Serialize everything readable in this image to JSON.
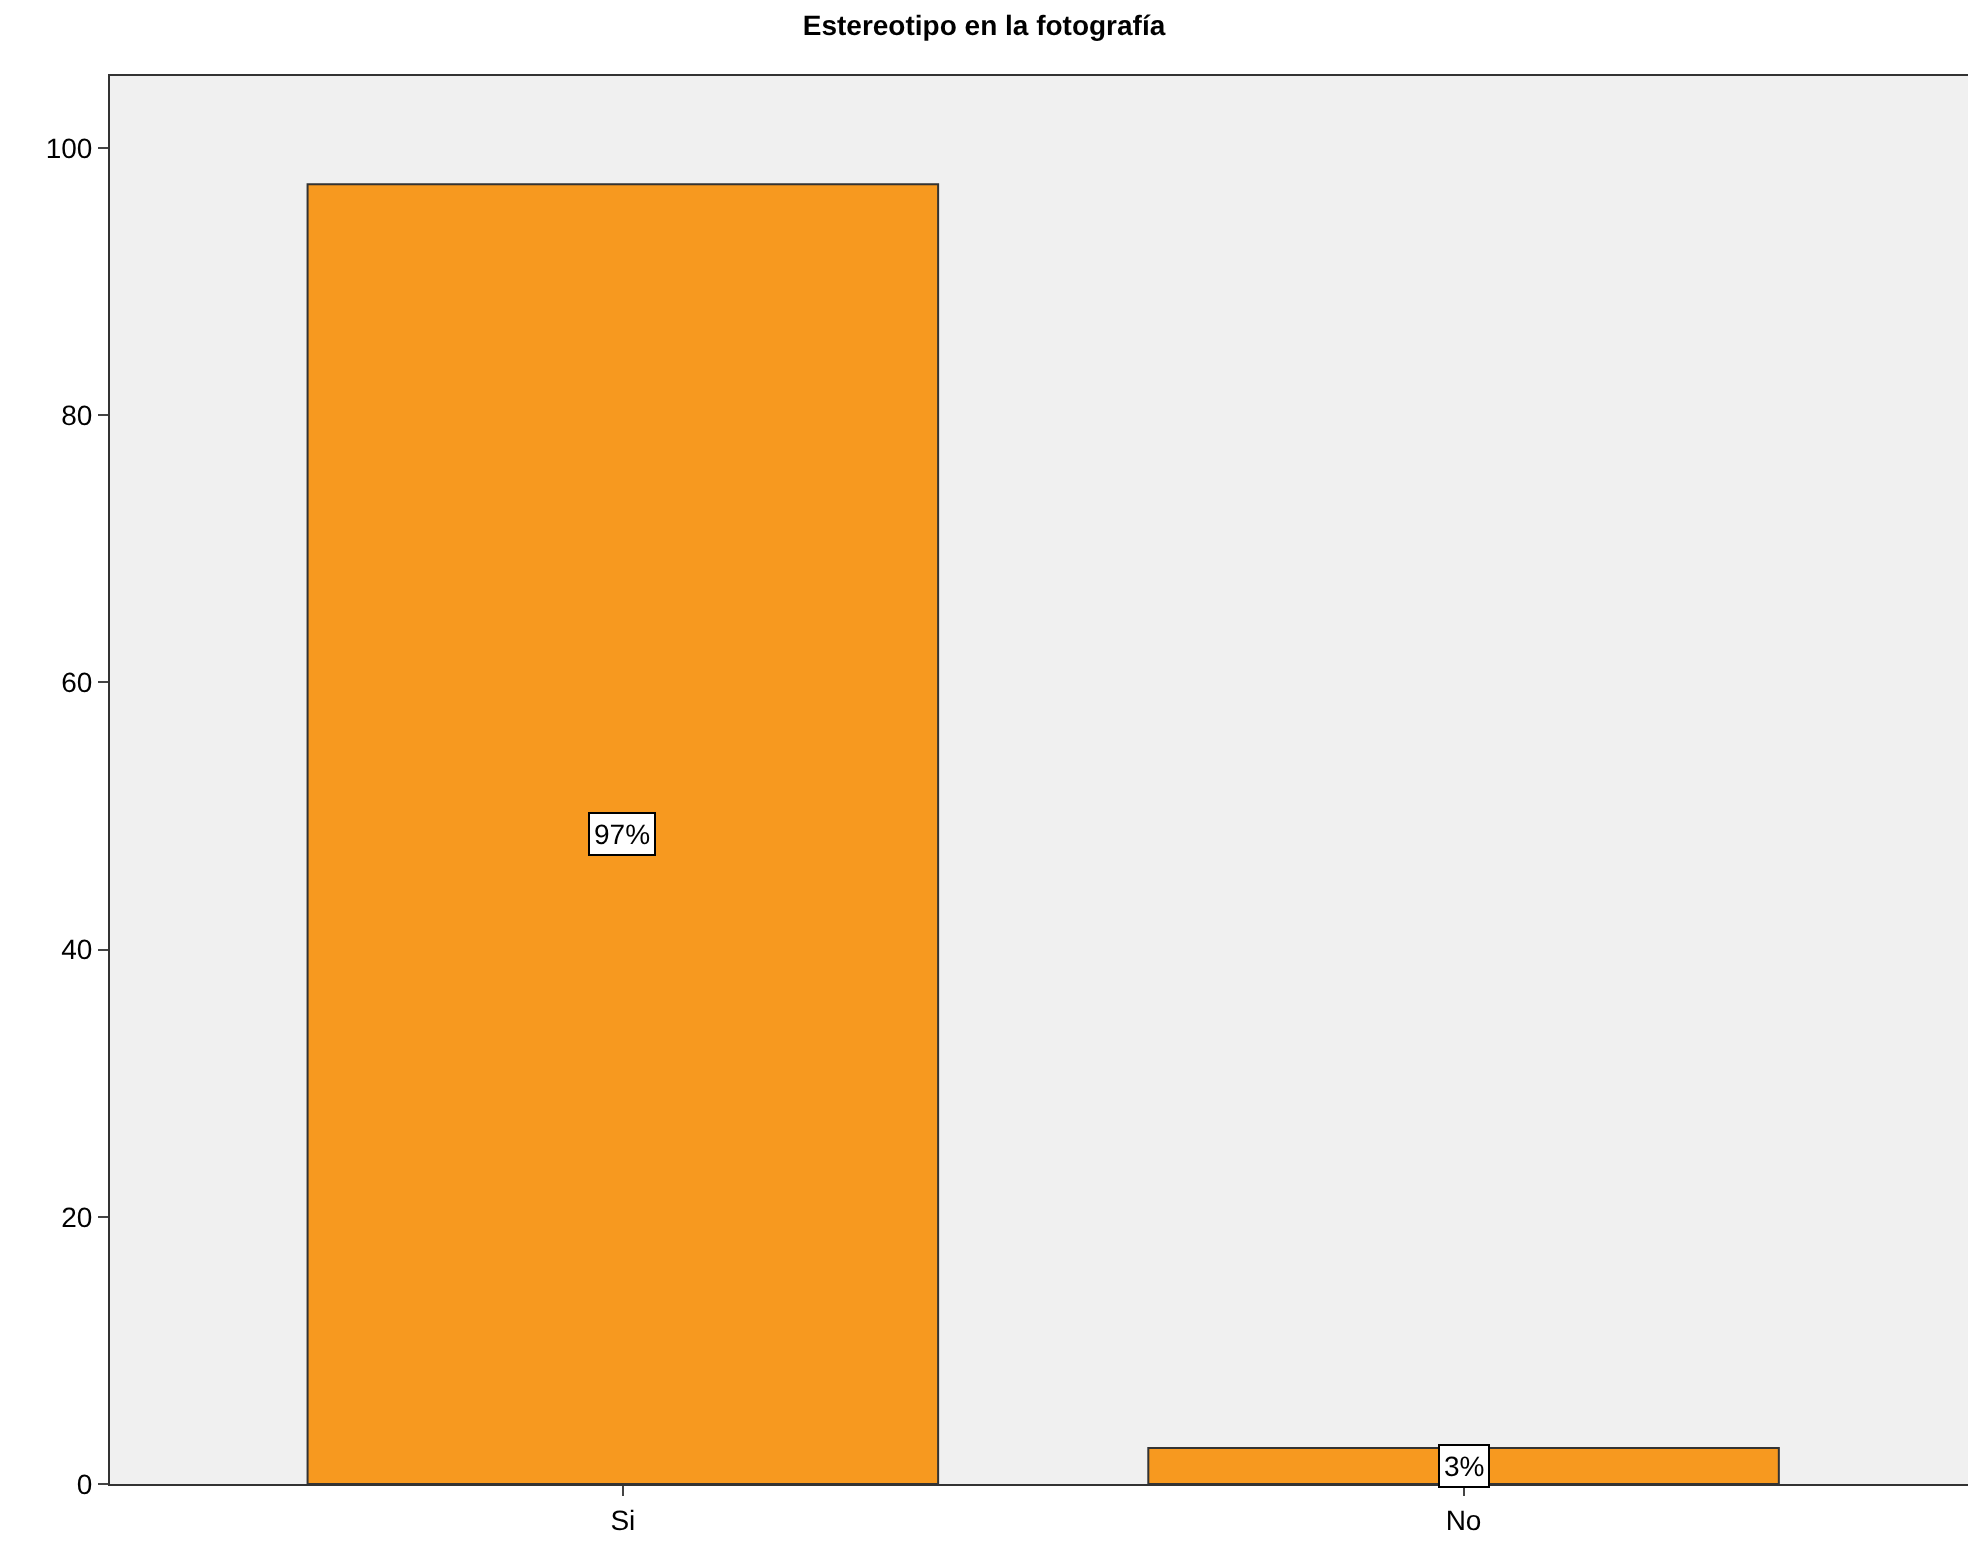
{
  "chart_data": {
    "type": "bar",
    "title": "Estereotipo en la fotografía",
    "categories": [
      "Si",
      "No"
    ],
    "values": [
      97.3,
      2.7
    ],
    "value_labels": [
      "97%",
      "3%"
    ],
    "color": "#f7991f",
    "ylim": [
      0,
      105.4
    ],
    "yticks": [
      0,
      20,
      40,
      60,
      80,
      100
    ],
    "grid": false,
    "legend": false
  }
}
